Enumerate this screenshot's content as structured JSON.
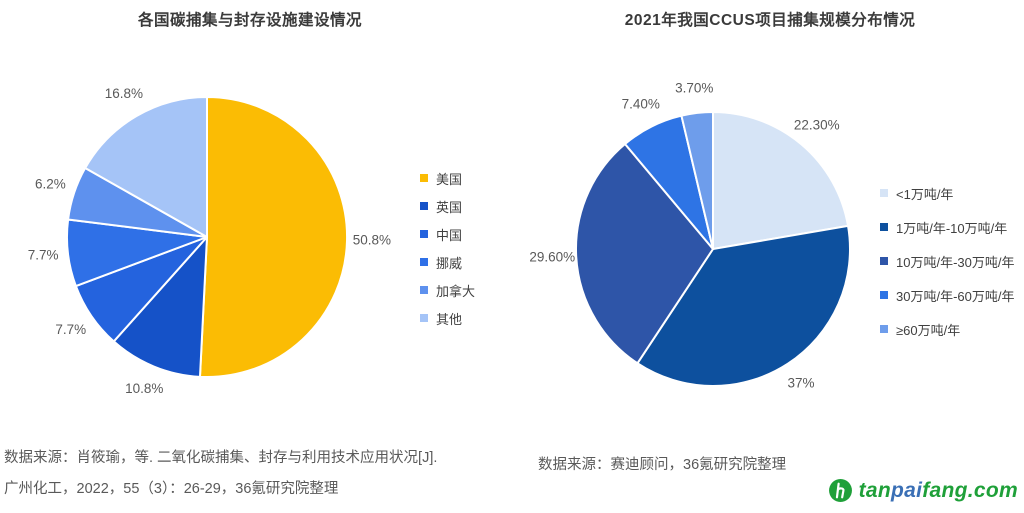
{
  "chart_data": [
    {
      "type": "pie",
      "title": "各国碳捕集与封存设施建设情况",
      "legend_position": "right",
      "start_angle_deg": 0,
      "direction": "clockwise",
      "slices": [
        {
          "label": "美国",
          "value": 50.8,
          "display": "50.8%",
          "color": "#FBBC04"
        },
        {
          "label": "英国",
          "value": 10.8,
          "display": "10.8%",
          "color": "#1552C8"
        },
        {
          "label": "中国",
          "value": 7.7,
          "display": "7.7%",
          "color": "#2463DE"
        },
        {
          "label": "挪威",
          "value": 7.7,
          "display": "7.7%",
          "color": "#2F70E7"
        },
        {
          "label": "加拿大",
          "value": 6.2,
          "display": "6.2%",
          "color": "#5E91EE"
        },
        {
          "label": "其他",
          "value": 16.8,
          "display": "16.8%",
          "color": "#A5C4F7"
        }
      ]
    },
    {
      "type": "pie",
      "title": "2021年我国CCUS项目捕集规模分布情况",
      "legend_position": "right",
      "start_angle_deg": 0,
      "direction": "clockwise",
      "slices": [
        {
          "label": "<1万吨/年",
          "value": 22.3,
          "display": "22.30%",
          "color": "#D6E4F6"
        },
        {
          "label": "1万吨/年-10万吨/年",
          "value": 37,
          "display": "37%",
          "color": "#0D509E"
        },
        {
          "label": "10万吨/年-30万吨/年",
          "value": 29.6,
          "display": "29.60%",
          "color": "#2E55A8"
        },
        {
          "label": "30万吨/年-60万吨/年",
          "value": 7.4,
          "display": "7.40%",
          "color": "#2E74E5"
        },
        {
          "label": "≥60万吨/年",
          "value": 3.7,
          "display": "3.70%",
          "color": "#6E9DEB"
        }
      ]
    }
  ],
  "sources": {
    "left_line1": "数据来源：肖筱瑜，等. 二氧化碳捕集、封存与利用技术应用状况[J].",
    "left_line2": "广州化工，2022，55（3）：26-29，36氪研究院整理",
    "right": "数据来源：赛迪顾问，36氪研究院整理"
  },
  "logo": {
    "icon": "tanpaifang-leaf-icon",
    "green": "#1FA039",
    "blue": "#3A6FB5",
    "text_parts": [
      {
        "text": "tan",
        "color": "#1FA039"
      },
      {
        "text": "pai",
        "color": "#3A6FB5"
      },
      {
        "text": "fang.com",
        "color": "#1FA039"
      }
    ]
  }
}
